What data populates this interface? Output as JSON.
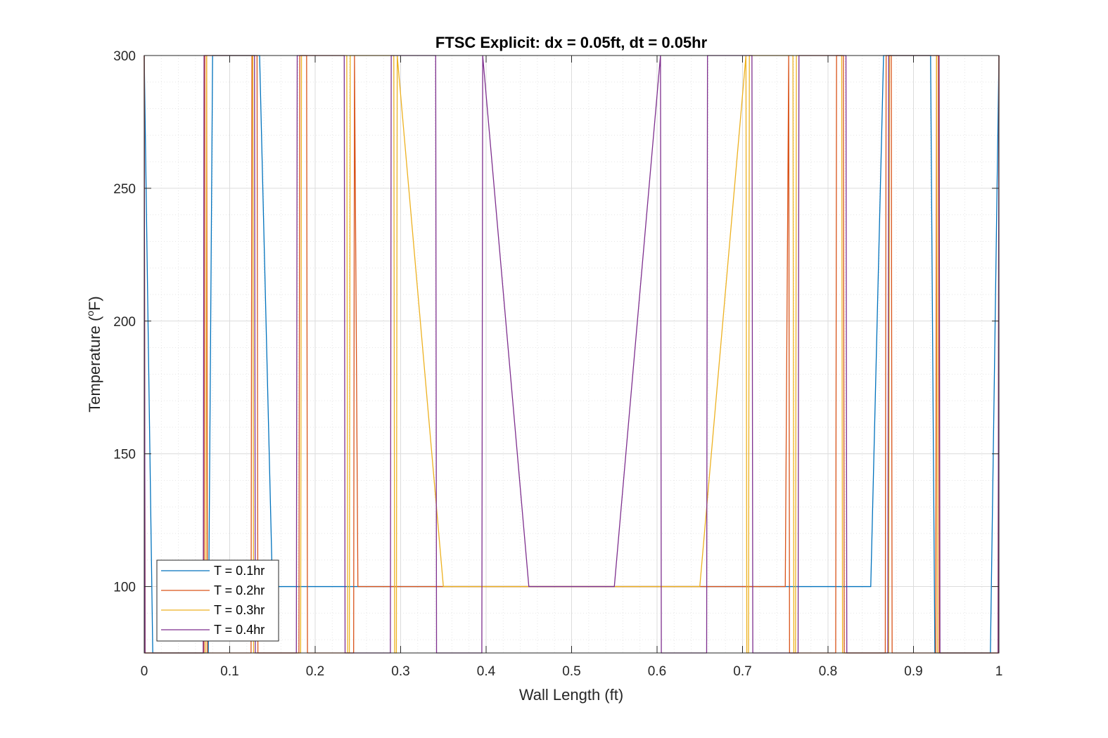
{
  "chart_data": {
    "type": "line",
    "title": "FTSC Explicit: dx = 0.05ft, dt = 0.05hr",
    "xlabel": "Wall Length (ft)",
    "ylabel_main": "Temperature (",
    "ylabel_sup": "o",
    "ylabel_end": "F)",
    "xlim": [
      0,
      1
    ],
    "ylim": [
      75,
      300
    ],
    "xticks": [
      0,
      0.1,
      0.2,
      0.3,
      0.4,
      0.5,
      0.6,
      0.7,
      0.8,
      0.9,
      1
    ],
    "xtick_labels": [
      "0",
      "0.1",
      "0.2",
      "0.3",
      "0.4",
      "0.5",
      "0.6",
      "0.7",
      "0.8",
      "0.9",
      "1"
    ],
    "yticks": [
      100,
      150,
      200,
      250,
      300
    ],
    "ytick_labels": [
      "100",
      "150",
      "200",
      "250",
      "300"
    ],
    "grid": true,
    "minor_grid": true,
    "legend_position": "bottom-left",
    "series": [
      {
        "name": "T = 0.1hr",
        "color": "#0072BD",
        "x": [
          0,
          0.01,
          0.075,
          0.08,
          0.135,
          0.15,
          0.85,
          0.865,
          0.92,
          0.925,
          0.99,
          1
        ],
        "y": [
          300,
          75,
          75,
          300,
          300,
          100,
          100,
          300,
          300,
          75,
          75,
          300
        ]
      },
      {
        "name": "T = 0.2hr",
        "color": "#D95319",
        "x": [
          0,
          0.001,
          0.07,
          0.071,
          0.073,
          0.074,
          0.125,
          0.126,
          0.132,
          0.133,
          0.181,
          0.182,
          0.19,
          0.191,
          0.245,
          0.246,
          0.25,
          0.75,
          0.754,
          0.755,
          0.809,
          0.81,
          0.818,
          0.819,
          0.867,
          0.868,
          0.874,
          0.875,
          0.926,
          0.927,
          0.929,
          0.93,
          0.999,
          1
        ],
        "y": [
          300,
          75,
          75,
          300,
          300,
          75,
          75,
          300,
          300,
          75,
          75,
          300,
          300,
          75,
          75,
          300,
          100,
          100,
          300,
          75,
          75,
          300,
          300,
          75,
          75,
          300,
          300,
          75,
          75,
          300,
          300,
          75,
          75,
          300
        ]
      },
      {
        "name": "T = 0.3hr",
        "color": "#EDB120",
        "x": [
          0,
          0.001,
          0.072,
          0.073,
          0.127,
          0.128,
          0.183,
          0.184,
          0.237,
          0.238,
          0.24,
          0.241,
          0.292,
          0.293,
          0.295,
          0.296,
          0.35,
          0.65,
          0.704,
          0.705,
          0.707,
          0.708,
          0.759,
          0.76,
          0.762,
          0.763,
          0.816,
          0.817,
          0.871,
          0.872,
          0.927,
          0.928,
          0.999,
          1
        ],
        "y": [
          300,
          75,
          75,
          300,
          300,
          75,
          75,
          300,
          300,
          75,
          75,
          300,
          300,
          75,
          75,
          300,
          100,
          100,
          300,
          75,
          75,
          300,
          300,
          75,
          75,
          300,
          300,
          75,
          75,
          300,
          300,
          75,
          75,
          300
        ]
      },
      {
        "name": "T = 0.4hr",
        "color": "#7E2F8E",
        "x": [
          0,
          0.001,
          0.069,
          0.07,
          0.129,
          0.13,
          0.178,
          0.179,
          0.234,
          0.235,
          0.288,
          0.289,
          0.341,
          0.342,
          0.395,
          0.396,
          0.45,
          0.55,
          0.604,
          0.605,
          0.658,
          0.659,
          0.711,
          0.712,
          0.765,
          0.766,
          0.821,
          0.822,
          0.87,
          0.871,
          0.93,
          0.931,
          0.999,
          1
        ],
        "y": [
          300,
          75,
          75,
          300,
          300,
          75,
          75,
          300,
          300,
          75,
          75,
          300,
          300,
          75,
          75,
          300,
          100,
          100,
          300,
          75,
          75,
          300,
          300,
          75,
          75,
          300,
          300,
          75,
          75,
          300,
          300,
          75,
          75,
          300
        ]
      }
    ]
  }
}
